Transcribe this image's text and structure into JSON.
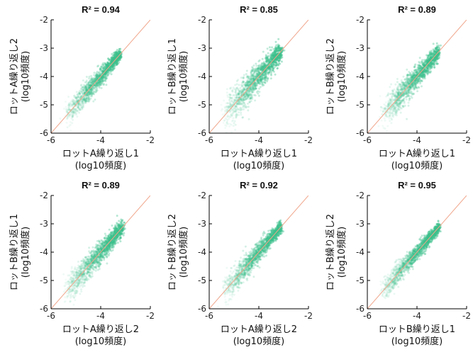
{
  "chart_data": [
    {
      "type": "scatter",
      "title": "R² = 0.94",
      "xlabel": [
        "ロットA繰り返し1",
        "(log10頻度)"
      ],
      "ylabel": [
        "ロットA繰り返し2",
        "(log10頻度)"
      ],
      "xlim": [
        -6,
        -2
      ],
      "ylim": [
        -6,
        -2
      ],
      "xticks": [
        -6,
        -4,
        -2
      ],
      "yticks": [
        -6,
        -5,
        -4,
        -3,
        -2
      ],
      "cloud": {
        "x_range": [
          -5.4,
          -3.2
        ],
        "spread": 0.18
      },
      "reference_line": {
        "from": [
          -6,
          -6
        ],
        "to": [
          -2,
          -2
        ]
      },
      "colors": {
        "points": "#3cc08c",
        "line": "#f0a58a"
      }
    },
    {
      "type": "scatter",
      "title": "R² = 0.85",
      "xlabel": [
        "ロットA繰り返し1",
        "(log10頻度)"
      ],
      "ylabel": [
        "ロットB繰り返し1",
        "(log10頻度)"
      ],
      "xlim": [
        -6,
        -2
      ],
      "ylim": [
        -6,
        -2
      ],
      "xticks": [
        -6,
        -4,
        -2
      ],
      "yticks": [
        -6,
        -5,
        -4,
        -3,
        -2
      ],
      "cloud": {
        "x_range": [
          -5.4,
          -3.1
        ],
        "spread": 0.26
      },
      "reference_line": {
        "from": [
          -6,
          -6
        ],
        "to": [
          -2,
          -2
        ]
      },
      "colors": {
        "points": "#3cc08c",
        "line": "#f0a58a"
      }
    },
    {
      "type": "scatter",
      "title": "R² = 0.89",
      "xlabel": [
        "ロットA繰り返し1",
        "(log10頻度)"
      ],
      "ylabel": [
        "ロットB繰り返し2",
        "(log10頻度)"
      ],
      "xlim": [
        -6,
        -2
      ],
      "ylim": [
        -6,
        -2
      ],
      "xticks": [
        -6,
        -4,
        -2
      ],
      "yticks": [
        -6,
        -5,
        -4,
        -3,
        -2
      ],
      "cloud": {
        "x_range": [
          -5.4,
          -3.1
        ],
        "spread": 0.22
      },
      "reference_line": {
        "from": [
          -6,
          -6
        ],
        "to": [
          -2,
          -2
        ]
      },
      "colors": {
        "points": "#3cc08c",
        "line": "#f0a58a"
      }
    },
    {
      "type": "scatter",
      "title": "R² = 0.89",
      "xlabel": [
        "ロットA繰り返し2",
        "(log10頻度)"
      ],
      "ylabel": [
        "ロットB繰り返し1",
        "(log10頻度)"
      ],
      "xlim": [
        -6,
        -2
      ],
      "ylim": [
        -6,
        -2
      ],
      "xticks": [
        -6,
        -4,
        -2
      ],
      "yticks": [
        -6,
        -5,
        -4,
        -3,
        -2
      ],
      "cloud": {
        "x_range": [
          -5.4,
          -3.1
        ],
        "spread": 0.22
      },
      "reference_line": {
        "from": [
          -6,
          -6
        ],
        "to": [
          -2,
          -2
        ]
      },
      "colors": {
        "points": "#3cc08c",
        "line": "#f0a58a"
      }
    },
    {
      "type": "scatter",
      "title": "R² = 0.92",
      "xlabel": [
        "ロットA繰り返し2",
        "(log10頻度)"
      ],
      "ylabel": [
        "ロットB繰り返し2",
        "(log10頻度)"
      ],
      "xlim": [
        -6,
        -2
      ],
      "ylim": [
        -6,
        -2
      ],
      "xticks": [
        -6,
        -4,
        -2
      ],
      "yticks": [
        -6,
        -5,
        -4,
        -3,
        -2
      ],
      "cloud": {
        "x_range": [
          -5.4,
          -3.1
        ],
        "spread": 0.19
      },
      "reference_line": {
        "from": [
          -6,
          -6
        ],
        "to": [
          -2,
          -2
        ]
      },
      "colors": {
        "points": "#3cc08c",
        "line": "#f0a58a"
      }
    },
    {
      "type": "scatter",
      "title": "R² = 0.95",
      "xlabel": [
        "ロットB繰り返し1",
        "(log10頻度)"
      ],
      "ylabel": [
        "ロットB繰り返し2",
        "(log10頻度)"
      ],
      "xlim": [
        -6,
        -2
      ],
      "ylim": [
        -6,
        -2
      ],
      "xticks": [
        -6,
        -4,
        -2
      ],
      "yticks": [
        -6,
        -5,
        -4,
        -3,
        -2
      ],
      "cloud": {
        "x_range": [
          -5.4,
          -3.1
        ],
        "spread": 0.16
      },
      "reference_line": {
        "from": [
          -6,
          -6
        ],
        "to": [
          -2,
          -2
        ]
      },
      "colors": {
        "points": "#3cc08c",
        "line": "#f0a58a"
      }
    }
  ]
}
